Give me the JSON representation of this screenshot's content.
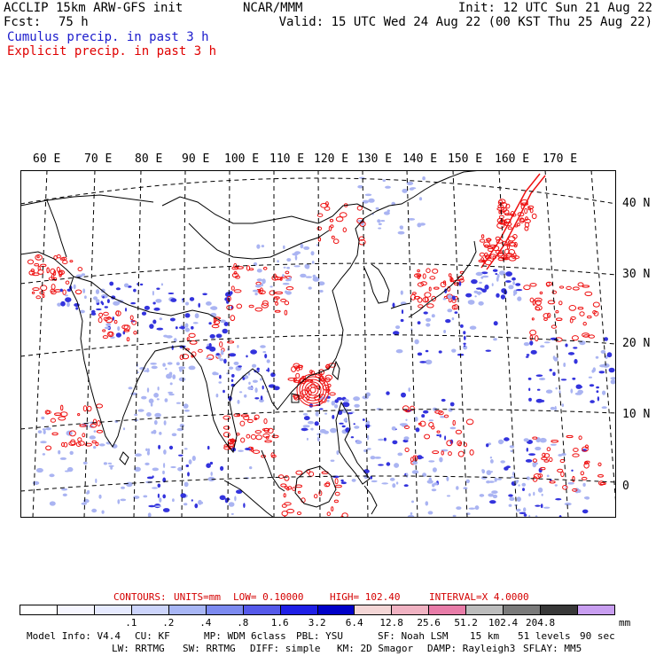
{
  "header": {
    "title": "ACCLIP 15km ARW-GFS init",
    "fcst_label": "Fcst:",
    "fcst_value": "75 h",
    "org": "NCAR/MMM",
    "init": "Init: 12 UTC Sun 21 Aug 22",
    "valid": "Valid: 15 UTC Wed 24 Aug 22 (00 KST Thu 25 Aug 22)",
    "cumulus": "Cumulus precip. in past 3 h",
    "explicit": "Explicit precip. in past 3 h"
  },
  "map": {
    "lon_labels": [
      "60 E",
      "70 E",
      "80 E",
      "90 E",
      "100 E",
      "110 E",
      "120 E",
      "130 E",
      "140 E",
      "150 E",
      "160 E",
      "170 E"
    ],
    "lat_labels": [
      "40 N",
      "30 N",
      "20 N",
      "10 N",
      "0"
    ],
    "colors": {
      "cumulus": "#3333dd",
      "explicit": "#ee1111",
      "light": "#aab4f2"
    }
  },
  "contours": {
    "label": "CONTOURS:",
    "units": "UNITS=mm",
    "low": "LOW= 0.10000",
    "high": "HIGH= 102.40",
    "interval": "INTERVAL=X 4.0000"
  },
  "colorbar": {
    "colors": [
      "#ffffff",
      "#f6f6ff",
      "#e6eaff",
      "#ccd4fb",
      "#a8b6f5",
      "#7c8af0",
      "#5559ea",
      "#1f1fe6",
      "#0000c8",
      "#f4d6d6",
      "#f0b2c2",
      "#e87ca8",
      "#bcbcbc",
      "#7a7a7a",
      "#383838",
      "#c89ef0"
    ],
    "ticks": [
      ".1",
      ".2",
      ".4",
      ".8",
      "1.6",
      "3.2",
      "6.4",
      "12.8",
      "25.6",
      "51.2",
      "102.4",
      "204.8"
    ],
    "unit": "mm"
  },
  "footer": {
    "line1": [
      "Model Info: V4.4",
      "CU: KF",
      "MP: WDM 6class",
      "PBL: YSU",
      "SF: Noah LSM",
      "15 km",
      "51 levels",
      "90 sec"
    ],
    "line2": [
      "LW: RRTMG",
      "SW: RRTMG",
      "DIFF: simple",
      "KM: 2D Smagor",
      "DAMP: Rayleigh3",
      "SFLAY: MM5"
    ]
  }
}
